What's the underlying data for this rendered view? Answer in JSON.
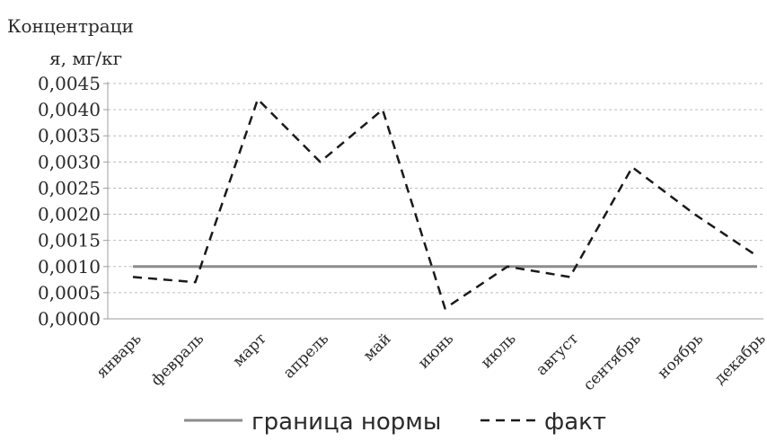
{
  "chart_data": {
    "type": "line",
    "ylabel_lines": [
      "Концентраци",
      "я, мг/кг"
    ],
    "categories": [
      "январь",
      "февраль",
      "март",
      "апрель",
      "май",
      "июнь",
      "июль",
      "август",
      "сентябрь",
      "ноябрь",
      "декабрь"
    ],
    "ylim": [
      0,
      0.0045
    ],
    "ytick_values": [
      0,
      0.0005,
      0.001,
      0.0015,
      0.002,
      0.0025,
      0.003,
      0.0035,
      0.004,
      0.0045
    ],
    "ytick_labels": [
      "0,0000",
      "0,0005",
      "0,0010",
      "0,0015",
      "0,0020",
      "0,0025",
      "0,0030",
      "0,0035",
      "0,0040",
      "0,0045"
    ],
    "grid": true,
    "legend_position": "bottom",
    "series": [
      {
        "name": "граница нормы",
        "style": "solid",
        "color": "#8c8c8c",
        "values": [
          0.001,
          0.001,
          0.001,
          0.001,
          0.001,
          0.001,
          0.001,
          0.001,
          0.001,
          0.001,
          0.001
        ]
      },
      {
        "name": "факт",
        "style": "dashed",
        "color": "#1a1a1a",
        "values": [
          0.0008,
          0.0007,
          0.0042,
          0.003,
          0.004,
          0.0002,
          0.001,
          0.0008,
          0.0029,
          0.002,
          0.0012
        ]
      }
    ]
  }
}
